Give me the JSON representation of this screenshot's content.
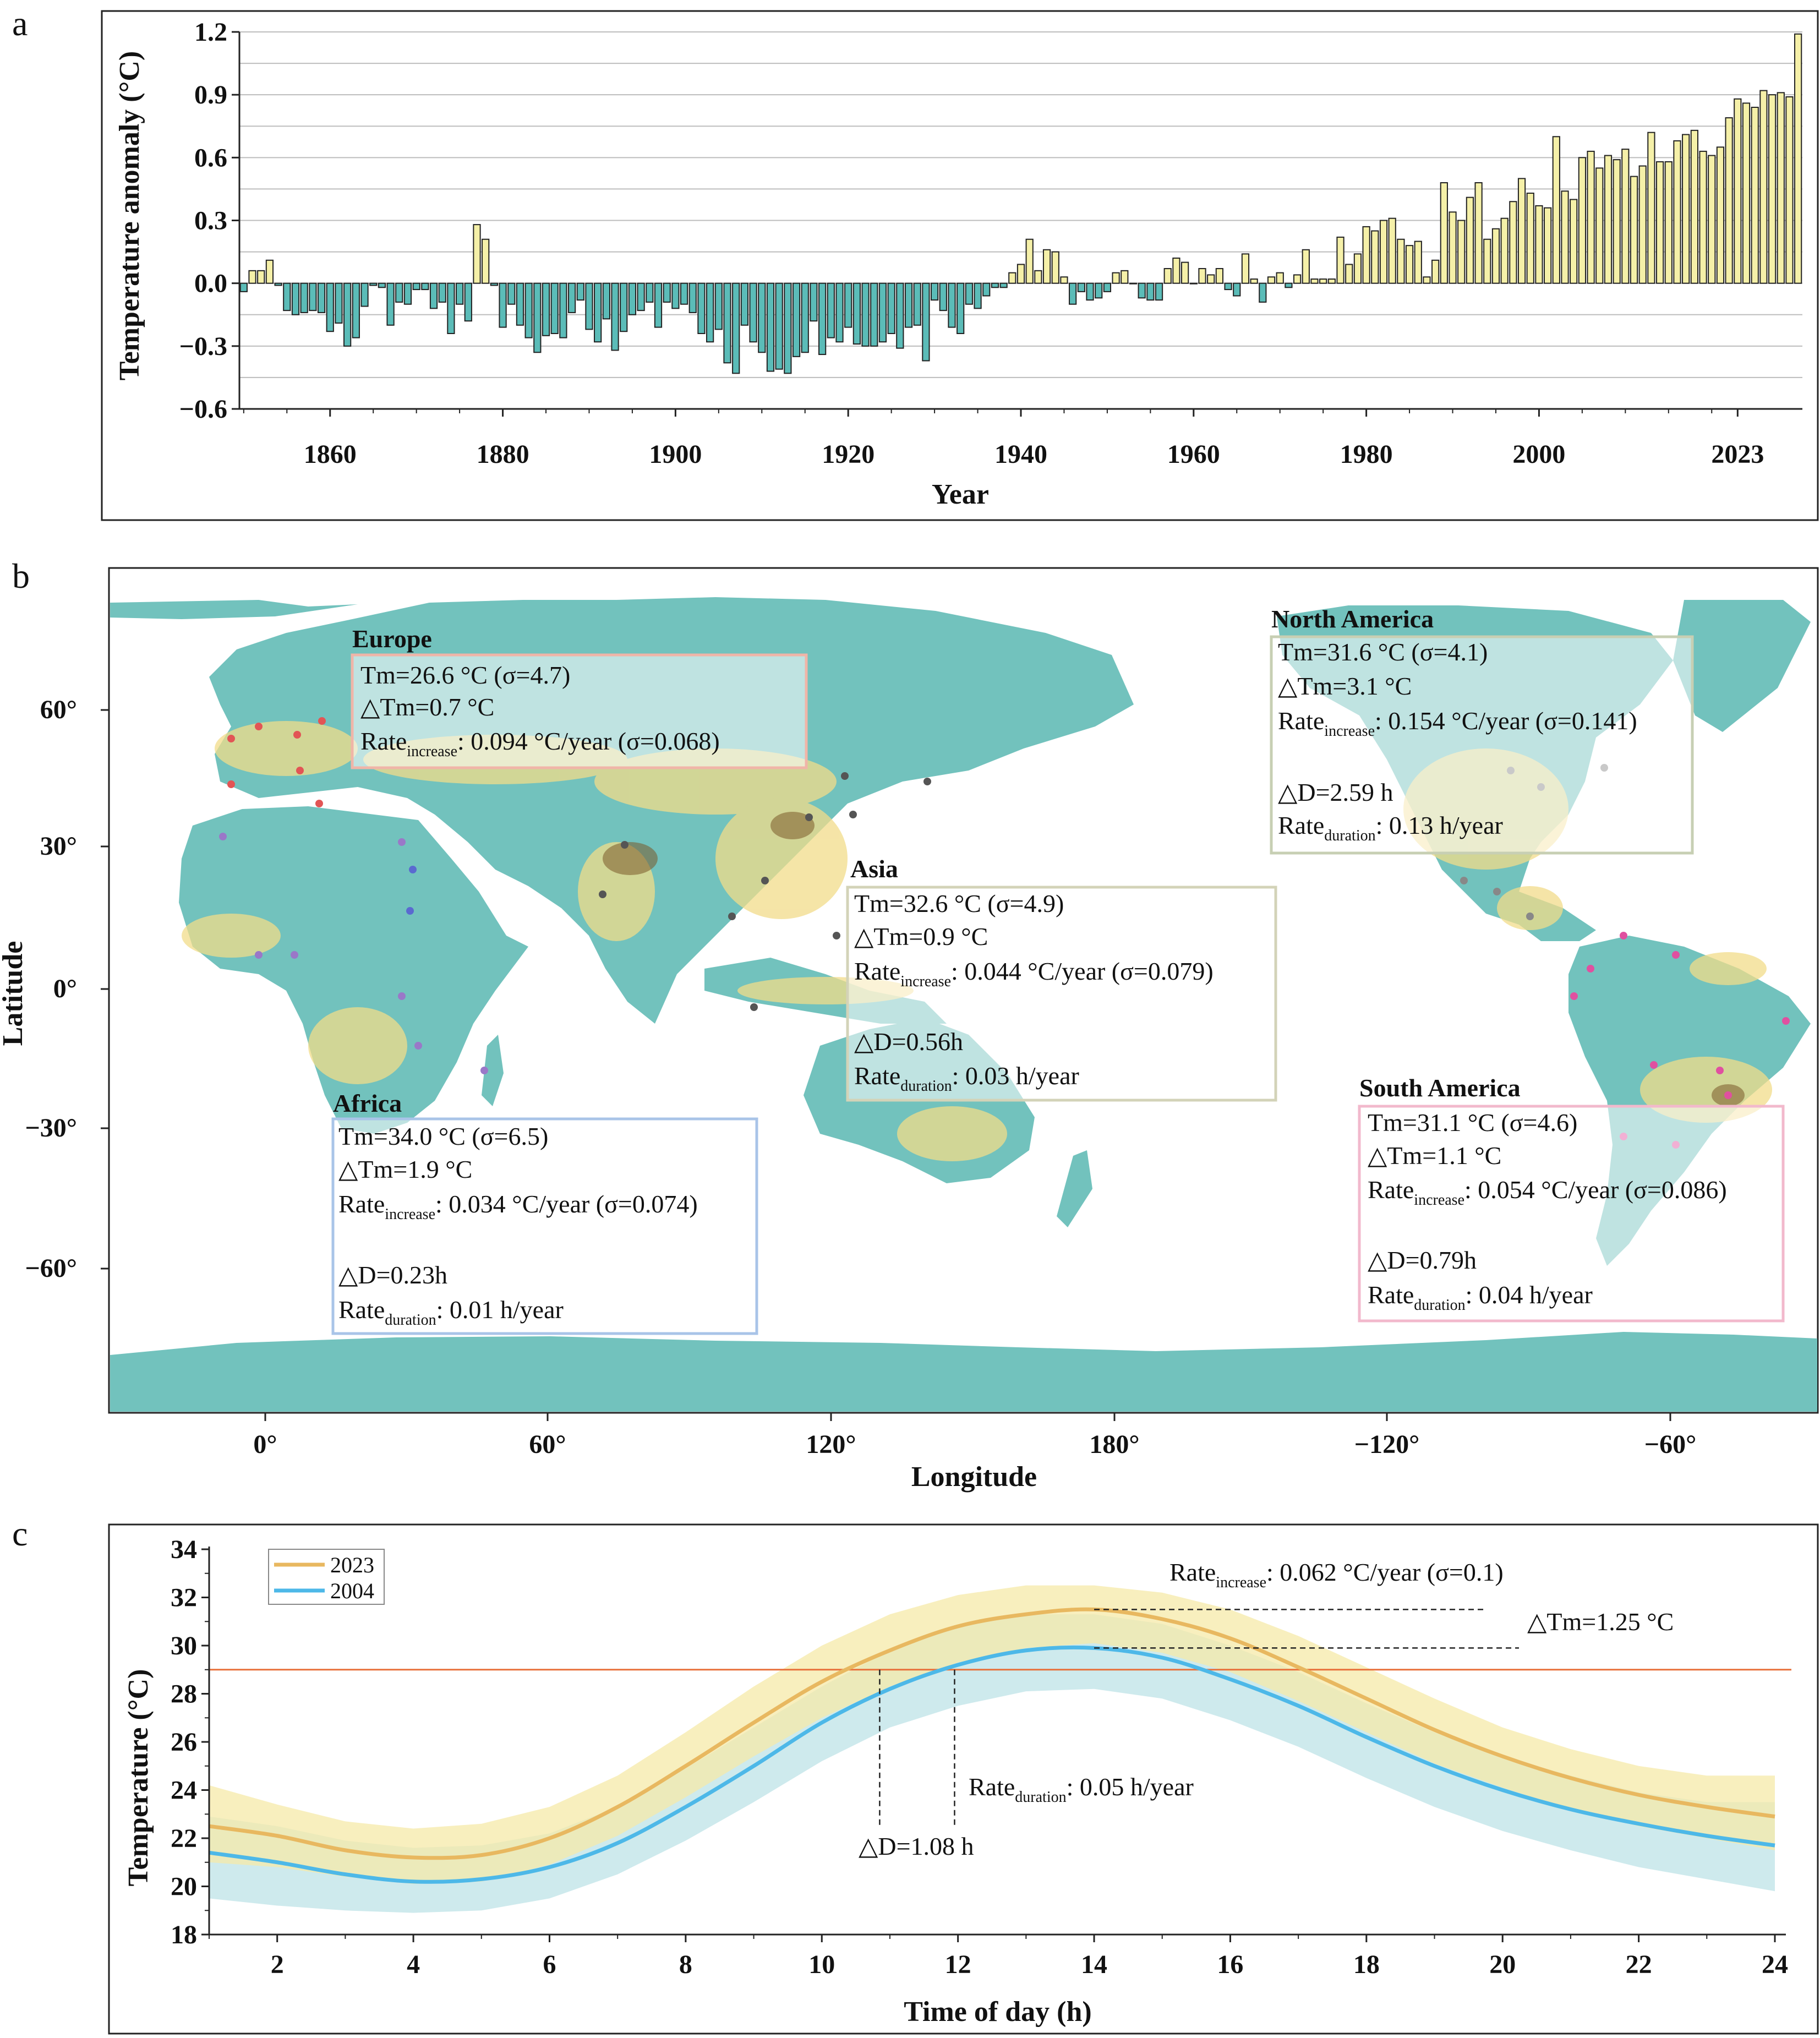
{
  "panels": {
    "a": "a",
    "b": "b",
    "c": "c"
  },
  "chart_data": [
    {
      "id": "a",
      "type": "bar",
      "xlabel": "Year",
      "ylabel": "Temperature anomaly (°C)",
      "ylim": [
        -0.6,
        1.2
      ],
      "yticks": [
        "1.2",
        "0.9",
        "0.6",
        "0.3",
        "0.0",
        "−0.3",
        "−0.6"
      ],
      "xticks": [
        "1860",
        "1880",
        "1900",
        "1920",
        "1940",
        "1960",
        "1980",
        "2000",
        "2023"
      ],
      "grid": true,
      "colors": {
        "positive": "#f5f0a8",
        "negative": "#5bbcb8"
      },
      "start_year": 1850,
      "values": [
        -0.04,
        0.06,
        0.06,
        0.11,
        -0.01,
        -0.13,
        -0.15,
        -0.14,
        -0.13,
        -0.14,
        -0.23,
        -0.19,
        -0.3,
        -0.26,
        -0.11,
        -0.01,
        -0.02,
        -0.2,
        -0.09,
        -0.1,
        -0.03,
        -0.03,
        -0.12,
        -0.09,
        -0.24,
        -0.1,
        -0.18,
        0.28,
        0.21,
        -0.01,
        -0.21,
        -0.1,
        -0.2,
        -0.26,
        -0.33,
        -0.25,
        -0.24,
        -0.26,
        -0.14,
        -0.08,
        -0.22,
        -0.28,
        -0.17,
        -0.32,
        -0.23,
        -0.15,
        -0.13,
        -0.09,
        -0.21,
        -0.09,
        -0.12,
        -0.1,
        -0.14,
        -0.24,
        -0.28,
        -0.22,
        -0.38,
        -0.43,
        -0.2,
        -0.28,
        -0.33,
        -0.42,
        -0.41,
        -0.43,
        -0.35,
        -0.33,
        -0.18,
        -0.34,
        -0.26,
        -0.28,
        -0.21,
        -0.29,
        -0.3,
        -0.3,
        -0.28,
        -0.24,
        -0.31,
        -0.21,
        -0.2,
        -0.37,
        -0.08,
        -0.13,
        -0.21,
        -0.24,
        -0.1,
        -0.12,
        -0.06,
        -0.02,
        -0.02,
        0.05,
        0.09,
        0.21,
        0.06,
        0.16,
        0.15,
        0.03,
        -0.1,
        -0.04,
        -0.08,
        -0.07,
        -0.04,
        0.05,
        0.06,
        0.0,
        -0.07,
        -0.08,
        -0.08,
        0.07,
        0.12,
        0.1,
        0.0,
        0.07,
        0.04,
        0.07,
        -0.03,
        -0.06,
        0.14,
        0.02,
        -0.09,
        0.03,
        0.05,
        -0.02,
        0.04,
        0.16,
        0.02,
        0.02,
        0.02,
        0.22,
        0.09,
        0.14,
        0.27,
        0.25,
        0.3,
        0.31,
        0.21,
        0.18,
        0.2,
        0.03,
        0.11,
        0.48,
        0.34,
        0.3,
        0.41,
        0.48,
        0.21,
        0.26,
        0.31,
        0.39,
        0.5,
        0.43,
        0.37,
        0.36,
        0.7,
        0.44,
        0.4,
        0.6,
        0.63,
        0.55,
        0.61,
        0.59,
        0.64,
        0.51,
        0.56,
        0.72,
        0.58,
        0.58,
        0.68,
        0.71,
        0.73,
        0.63,
        0.61,
        0.65,
        0.79,
        0.88,
        0.86,
        0.84,
        0.92,
        0.9,
        0.91,
        0.89,
        1.19
      ]
    },
    {
      "id": "c",
      "type": "line",
      "xlabel": "Time of day (h)",
      "ylabel": "Temperature (°C)",
      "xlim": [
        1,
        24
      ],
      "ylim": [
        18,
        34
      ],
      "xticks": [
        "2",
        "4",
        "6",
        "8",
        "10",
        "12",
        "14",
        "16",
        "18",
        "20",
        "22",
        "24"
      ],
      "yticks": [
        "34",
        "32",
        "30",
        "28",
        "26",
        "24",
        "22",
        "20",
        "18"
      ],
      "threshold": 29,
      "x": [
        1,
        2,
        3,
        4,
        5,
        6,
        7,
        8,
        9,
        10,
        11,
        12,
        13,
        14,
        15,
        16,
        17,
        18,
        19,
        20,
        21,
        22,
        23,
        24
      ],
      "series": [
        {
          "name": "2023",
          "color": "#e8b860",
          "band": "#f6e9a8",
          "values": [
            22.5,
            22.1,
            21.5,
            21.2,
            21.3,
            22.0,
            23.3,
            25.0,
            26.8,
            28.5,
            29.8,
            30.8,
            31.3,
            31.5,
            31.1,
            30.3,
            29.1,
            27.8,
            26.5,
            25.4,
            24.5,
            23.8,
            23.3,
            22.9
          ],
          "lower": [
            21.0,
            20.8,
            20.4,
            20.1,
            20.2,
            20.9,
            22.1,
            23.7,
            25.4,
            27.0,
            28.3,
            29.3,
            29.9,
            30.1,
            29.7,
            28.9,
            27.7,
            26.4,
            25.1,
            24.1,
            23.2,
            22.5,
            22.0,
            21.5
          ],
          "upper": [
            24.2,
            23.4,
            22.7,
            22.4,
            22.6,
            23.3,
            24.6,
            26.4,
            28.3,
            30.0,
            31.3,
            32.1,
            32.5,
            32.5,
            32.2,
            31.5,
            30.4,
            29.1,
            27.8,
            26.6,
            25.7,
            25.0,
            24.6,
            24.6
          ]
        },
        {
          "name": "2004",
          "color": "#4db8e8",
          "band": "#c6e6ea",
          "values": [
            21.4,
            21.0,
            20.5,
            20.2,
            20.3,
            20.8,
            21.8,
            23.3,
            25.0,
            26.8,
            28.2,
            29.2,
            29.8,
            29.9,
            29.5,
            28.6,
            27.5,
            26.2,
            25.0,
            24.0,
            23.2,
            22.6,
            22.1,
            21.7
          ],
          "lower": [
            19.5,
            19.2,
            19.0,
            18.9,
            19.0,
            19.5,
            20.5,
            21.9,
            23.5,
            25.2,
            26.6,
            27.5,
            28.1,
            28.2,
            27.8,
            26.9,
            25.8,
            24.5,
            23.3,
            22.3,
            21.5,
            20.8,
            20.3,
            19.8
          ],
          "upper": [
            22.9,
            22.5,
            21.9,
            21.6,
            21.7,
            22.2,
            23.3,
            24.9,
            26.6,
            28.3,
            29.8,
            30.8,
            31.3,
            31.3,
            30.9,
            30.0,
            28.9,
            27.6,
            26.4,
            25.4,
            24.6,
            23.9,
            23.5,
            23.5
          ]
        }
      ],
      "annotations": {
        "rate_increase_main": "Rate",
        "rate_increase_sub": "increase",
        "rate_increase_val": ": 0.062 °C/year (σ=0.1)",
        "delta_tm": "△Tm=1.25 °C",
        "rate_duration_main": "Rate",
        "rate_duration_sub": "duration",
        "rate_duration_val": ": 0.05 h/year",
        "delta_d": "△D=1.08 h"
      },
      "legend_position": "top-left"
    }
  ],
  "map": {
    "id": "b",
    "xlabel": "Longitude",
    "ylabel": "Latitude",
    "xticks": [
      "0°",
      "60°",
      "120°",
      "180°",
      "−120°",
      "−60°"
    ],
    "yticks": [
      "60°",
      "30°",
      "0°",
      "−30°",
      "−60°"
    ],
    "colors": {
      "land": "#72c2bd",
      "ocean": "#ffffff",
      "warm": "#f2dc8a"
    },
    "regions": [
      {
        "key": "europe",
        "title": "Europe",
        "color": "#f0b5a8",
        "tm": "Tm=26.6 °C (σ=4.7)",
        "dtm": "△Tm=0.7 °C",
        "rate_inc_main": "Rate",
        "rate_inc_sub": "increase",
        "rate_inc_val": ": 0.094 °C/year (σ=0.068)"
      },
      {
        "key": "north_america",
        "title": "North America",
        "color": "#c7cfb3",
        "tm": "Tm=31.6 °C (σ=4.1)",
        "dtm": "△Tm=3.1 °C",
        "rate_inc_main": "Rate",
        "rate_inc_sub": "increase",
        "rate_inc_val": ": 0.154 °C/year (σ=0.141)",
        "dd": "△D=2.59 h",
        "rate_dur_main": "Rate",
        "rate_dur_sub": "duration",
        "rate_dur_val": ": 0.13 h/year"
      },
      {
        "key": "asia",
        "title": "Asia",
        "color": "#d3d3b8",
        "tm": "Tm=32.6 °C (σ=4.9)",
        "dtm": "△Tm=0.9 °C",
        "rate_inc_main": "Rate",
        "rate_inc_sub": "increase",
        "rate_inc_val": ": 0.044 °C/year (σ=0.079)",
        "dd": "△D=0.56h",
        "rate_dur_main": "Rate",
        "rate_dur_sub": "duration",
        "rate_dur_val": ": 0.03 h/year"
      },
      {
        "key": "africa",
        "title": "Africa",
        "color": "#a9c4e8",
        "tm": "Tm=34.0 °C (σ=6.5)",
        "dtm": "△Tm=1.9 °C",
        "rate_inc_main": "Rate",
        "rate_inc_sub": "increase",
        "rate_inc_val": ": 0.034 °C/year (σ=0.074)",
        "dd": "△D=0.23h",
        "rate_dur_main": "Rate",
        "rate_dur_sub": "duration",
        "rate_dur_val": ": 0.01 h/year"
      },
      {
        "key": "south_america",
        "title": "South America",
        "color": "#f2b9cc",
        "tm": "Tm=31.1 °C (σ=4.6)",
        "dtm": "△Tm=1.1 °C",
        "rate_inc_main": "Rate",
        "rate_inc_sub": "increase",
        "rate_inc_val": ": 0.054 °C/year (σ=0.086)",
        "dd": "△D=0.79h",
        "rate_dur_main": "Rate",
        "rate_dur_sub": "duration",
        "rate_dur_val": ": 0.04 h/year"
      }
    ]
  }
}
